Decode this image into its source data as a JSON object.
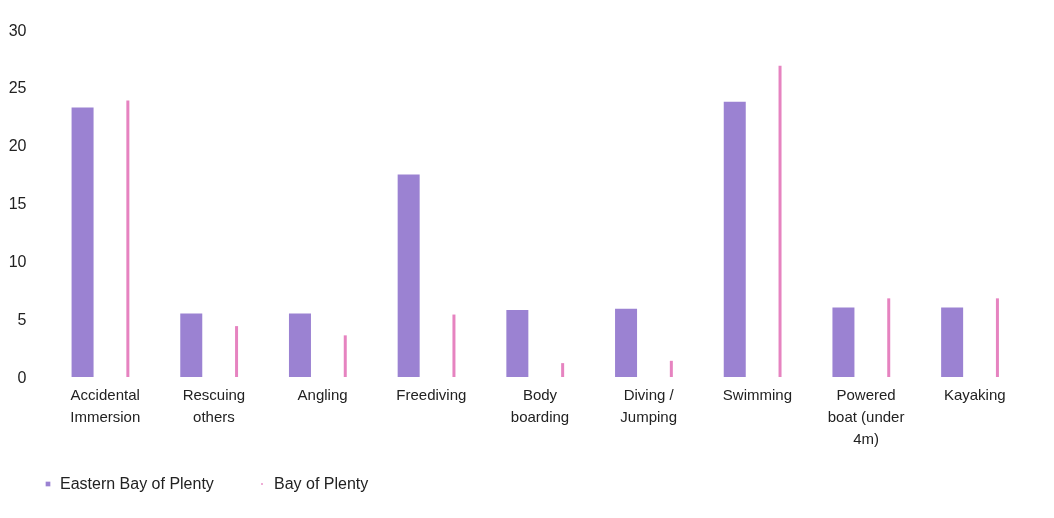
{
  "chart_data": {
    "type": "bar",
    "categories": [
      "Accidental Immersion",
      "Rescuing others",
      "Angling",
      "Freediving",
      "Body boarding",
      "Diving / Jumping",
      "Swimming",
      "Powered boat (under 4m)",
      "Kayaking"
    ],
    "series": [
      {
        "name": "Eastern Bay of Plenty",
        "color": "#9b82d2",
        "values": [
          23.3,
          5.5,
          5.5,
          17.5,
          5.8,
          5.9,
          23.8,
          6.0,
          6.0
        ]
      },
      {
        "name": "Bay of Plenty",
        "color": "#e683c0",
        "values": [
          23.9,
          4.4,
          3.6,
          5.4,
          1.2,
          1.4,
          26.9,
          6.8,
          6.8
        ]
      }
    ],
    "ylim": [
      0,
      30
    ],
    "yticks": [
      0,
      5,
      10,
      15,
      20,
      25,
      30
    ],
    "grid": false,
    "legend": "bottom"
  }
}
